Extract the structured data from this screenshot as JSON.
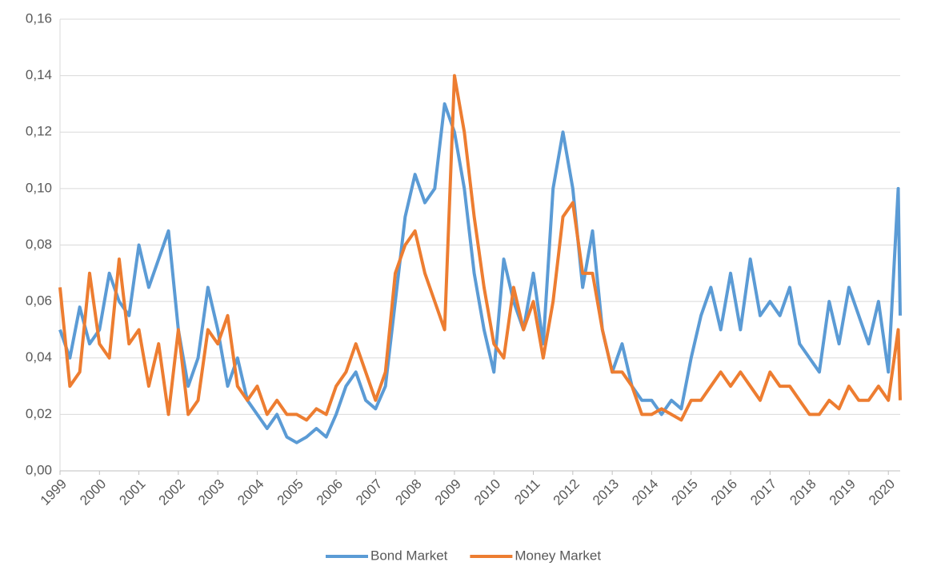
{
  "chart_data": {
    "type": "line",
    "x": [
      1999,
      1999.25,
      1999.5,
      1999.75,
      2000,
      2000.25,
      2000.5,
      2000.75,
      2001,
      2001.25,
      2001.5,
      2001.75,
      2002,
      2002.25,
      2002.5,
      2002.75,
      2003,
      2003.25,
      2003.5,
      2003.75,
      2004,
      2004.25,
      2004.5,
      2004.75,
      2005,
      2005.25,
      2005.5,
      2005.75,
      2006,
      2006.25,
      2006.5,
      2006.75,
      2007,
      2007.25,
      2007.5,
      2007.75,
      2008,
      2008.25,
      2008.5,
      2008.75,
      2009,
      2009.25,
      2009.5,
      2009.75,
      2010,
      2010.25,
      2010.5,
      2010.75,
      2011,
      2011.25,
      2011.5,
      2011.75,
      2012,
      2012.25,
      2012.5,
      2012.75,
      2013,
      2013.25,
      2013.5,
      2013.75,
      2014,
      2014.25,
      2014.5,
      2014.75,
      2015,
      2015.25,
      2015.5,
      2015.75,
      2016,
      2016.25,
      2016.5,
      2016.75,
      2017,
      2017.25,
      2017.5,
      2017.75,
      2018,
      2018.25,
      2018.5,
      2018.75,
      2019,
      2019.25,
      2019.5,
      2019.75,
      2020,
      2020.25,
      2020.3
    ],
    "series": [
      {
        "name": "Bond Market",
        "color": "#5b9bd5",
        "values": [
          0.05,
          0.04,
          0.058,
          0.045,
          0.05,
          0.07,
          0.06,
          0.055,
          0.08,
          0.065,
          0.075,
          0.085,
          0.05,
          0.03,
          0.04,
          0.065,
          0.05,
          0.03,
          0.04,
          0.025,
          0.02,
          0.015,
          0.02,
          0.012,
          0.01,
          0.012,
          0.015,
          0.012,
          0.02,
          0.03,
          0.035,
          0.025,
          0.022,
          0.03,
          0.06,
          0.09,
          0.105,
          0.095,
          0.1,
          0.13,
          0.12,
          0.1,
          0.07,
          0.05,
          0.035,
          0.075,
          0.06,
          0.05,
          0.07,
          0.045,
          0.1,
          0.12,
          0.1,
          0.065,
          0.085,
          0.05,
          0.035,
          0.045,
          0.03,
          0.025,
          0.025,
          0.02,
          0.025,
          0.022,
          0.04,
          0.055,
          0.065,
          0.05,
          0.07,
          0.05,
          0.075,
          0.055,
          0.06,
          0.055,
          0.065,
          0.045,
          0.04,
          0.035,
          0.06,
          0.045,
          0.065,
          0.055,
          0.045,
          0.06,
          0.035,
          0.1,
          0.055
        ]
      },
      {
        "name": "Money Market",
        "color": "#ed7d31",
        "values": [
          0.065,
          0.03,
          0.035,
          0.07,
          0.045,
          0.04,
          0.075,
          0.045,
          0.05,
          0.03,
          0.045,
          0.02,
          0.05,
          0.02,
          0.025,
          0.05,
          0.045,
          0.055,
          0.03,
          0.025,
          0.03,
          0.02,
          0.025,
          0.02,
          0.02,
          0.018,
          0.022,
          0.02,
          0.03,
          0.035,
          0.045,
          0.035,
          0.025,
          0.035,
          0.07,
          0.08,
          0.085,
          0.07,
          0.06,
          0.05,
          0.14,
          0.12,
          0.09,
          0.065,
          0.045,
          0.04,
          0.065,
          0.05,
          0.06,
          0.04,
          0.06,
          0.09,
          0.095,
          0.07,
          0.07,
          0.05,
          0.035,
          0.035,
          0.03,
          0.02,
          0.02,
          0.022,
          0.02,
          0.018,
          0.025,
          0.025,
          0.03,
          0.035,
          0.03,
          0.035,
          0.03,
          0.025,
          0.035,
          0.03,
          0.03,
          0.025,
          0.02,
          0.02,
          0.025,
          0.022,
          0.03,
          0.025,
          0.025,
          0.03,
          0.025,
          0.05,
          0.025
        ]
      }
    ],
    "xlim": [
      1999,
      2020.3
    ],
    "xticks": [
      1999,
      2000,
      2001,
      2002,
      2003,
      2004,
      2005,
      2006,
      2007,
      2008,
      2009,
      2010,
      2011,
      2012,
      2013,
      2014,
      2015,
      2016,
      2017,
      2018,
      2019,
      2020
    ],
    "ylim": [
      0,
      0.16
    ],
    "yticks": [
      {
        "value": 0,
        "label": "0,00"
      },
      {
        "value": 0.02,
        "label": "0,02"
      },
      {
        "value": 0.04,
        "label": "0,04"
      },
      {
        "value": 0.06,
        "label": "0,06"
      },
      {
        "value": 0.08,
        "label": "0,08"
      },
      {
        "value": 0.1,
        "label": "0,10"
      },
      {
        "value": 0.12,
        "label": "0,12"
      },
      {
        "value": 0.14,
        "label": "0,14"
      },
      {
        "value": 0.16,
        "label": "0,16"
      }
    ],
    "grid": true,
    "legend": "bottom"
  }
}
